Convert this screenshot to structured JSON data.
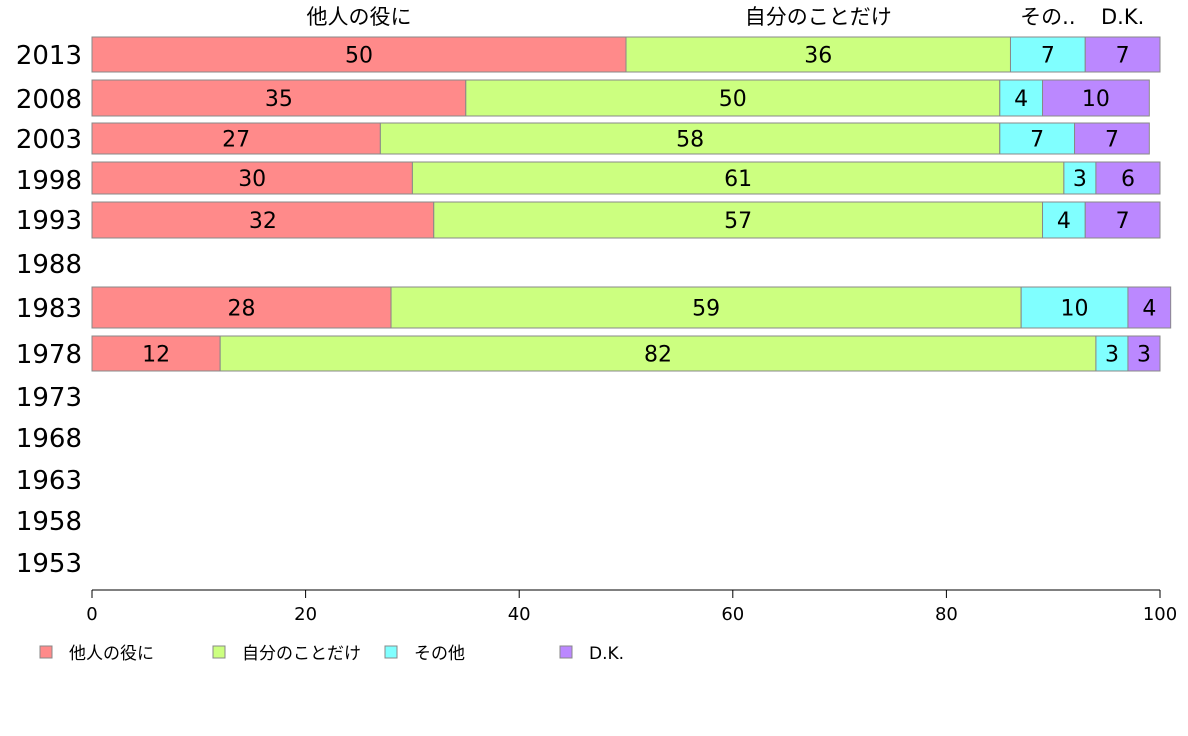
{
  "chart_data": {
    "type": "bar",
    "orientation": "horizontal",
    "stacked": true,
    "years": [
      "2013",
      "2008",
      "2003",
      "1998",
      "1993",
      "1988",
      "1983",
      "1978",
      "1973",
      "1968",
      "1963",
      "1958",
      "1953"
    ],
    "series": [
      {
        "name": "他人の役に",
        "color": "#ff8a8a",
        "values": [
          50,
          35,
          27,
          30,
          32,
          null,
          28,
          12,
          null,
          null,
          null,
          null,
          null
        ]
      },
      {
        "name": "自分のことだけ",
        "color": "#ccff80",
        "values": [
          36,
          50,
          58,
          61,
          57,
          null,
          59,
          82,
          null,
          null,
          null,
          null,
          null
        ]
      },
      {
        "name": "その他",
        "color": "#80ffff",
        "values": [
          7,
          4,
          7,
          3,
          4,
          null,
          10,
          3,
          null,
          null,
          null,
          null,
          null
        ]
      },
      {
        "name": "D.K.",
        "color": "#bb88ff",
        "values": [
          7,
          10,
          7,
          6,
          7,
          null,
          4,
          3,
          null,
          null,
          null,
          null,
          null
        ]
      }
    ],
    "top_labels": [
      "他人の役に",
      "自分のことだけ",
      "その..",
      "D.K."
    ],
    "xlim": [
      0,
      100
    ],
    "xticks": [
      "0",
      "20",
      "40",
      "60",
      "80",
      "100"
    ],
    "legend_position": "bottom-left",
    "grid": false
  }
}
